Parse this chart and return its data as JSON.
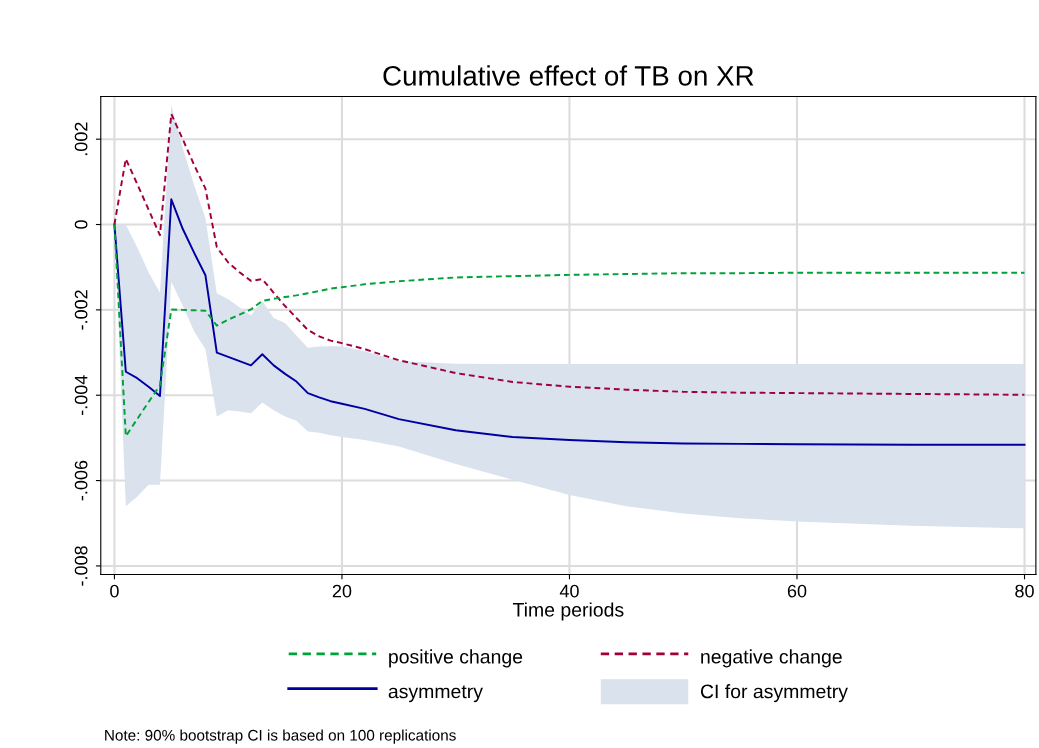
{
  "chart_data": {
    "type": "line",
    "title": "Cumulative effect of TB on XR",
    "xlabel": "Time periods",
    "x": [
      0,
      1,
      2,
      3,
      4,
      5,
      6,
      7,
      8,
      9,
      10,
      11,
      12,
      13,
      14,
      15,
      16,
      17,
      18,
      19,
      20,
      22,
      25,
      30,
      35,
      40,
      45,
      50,
      55,
      60,
      70,
      80
    ],
    "series": [
      {
        "name": "positive change",
        "color": "#00a23a",
        "line_style": "dashed",
        "values": [
          0,
          -0.00496,
          -0.00456,
          -0.00416,
          -0.00377,
          -0.00199,
          -0.002,
          -0.00201,
          -0.00202,
          -0.00237,
          -0.00223,
          -0.00211,
          -0.00199,
          -0.00179,
          -0.00174,
          -0.0017,
          -0.00166,
          -0.00161,
          -0.00156,
          -0.0015,
          -0.00147,
          -0.0014,
          -0.00133,
          -0.00124,
          -0.00121,
          -0.00118,
          -0.00116,
          -0.00114,
          -0.00114,
          -0.00113,
          -0.00113,
          -0.00113
        ]
      },
      {
        "name": "negative change",
        "color": "#a0003c",
        "line_style": "dashed",
        "values": [
          0,
          0.00154,
          0.00095,
          0.00035,
          -0.00025,
          0.00259,
          0.002,
          0.0014,
          0.00084,
          -0.00053,
          -0.00089,
          -0.00112,
          -0.00132,
          -0.00128,
          -0.0016,
          -0.00191,
          -0.00219,
          -0.00247,
          -0.00262,
          -0.00272,
          -0.00278,
          -0.00292,
          -0.00318,
          -0.00348,
          -0.00369,
          -0.0038,
          -0.00387,
          -0.00392,
          -0.00394,
          -0.00395,
          -0.00397,
          -0.00399
        ]
      },
      {
        "name": "asymmetry",
        "color": "#0000a0",
        "line_style": "solid",
        "values": [
          0,
          -0.00345,
          -0.0036,
          -0.0038,
          -0.00402,
          0.00059,
          -0.0001,
          -0.00066,
          -0.00119,
          -0.003,
          -0.0031,
          -0.0032,
          -0.0033,
          -0.00304,
          -0.0033,
          -0.0035,
          -0.00368,
          -0.00395,
          -0.00405,
          -0.00414,
          -0.0042,
          -0.00432,
          -0.00456,
          -0.00482,
          -0.00498,
          -0.00505,
          -0.0051,
          -0.00513,
          -0.00514,
          -0.00515,
          -0.00516,
          -0.00516
        ],
        "lower": [
          0,
          -0.0066,
          -0.00638,
          -0.0061,
          -0.0061,
          -0.00134,
          -0.0019,
          -0.0025,
          -0.00292,
          -0.0045,
          -0.00435,
          -0.00438,
          -0.00442,
          -0.00417,
          -0.00435,
          -0.0045,
          -0.0046,
          -0.00485,
          -0.00488,
          -0.00494,
          -0.00498,
          -0.00505,
          -0.0052,
          -0.00561,
          -0.00598,
          -0.00634,
          -0.0066,
          -0.00677,
          -0.00688,
          -0.00696,
          -0.00706,
          -0.00712
        ],
        "upper": [
          0,
          0,
          -0.00053,
          -0.00112,
          -0.0016,
          0.00279,
          0.0018,
          0.00093,
          0.00014,
          -0.00161,
          -0.00175,
          -0.00194,
          -0.00213,
          -0.00179,
          -0.00219,
          -0.00231,
          -0.0026,
          -0.00289,
          -0.00286,
          -0.00285,
          -0.00285,
          -0.00297,
          -0.0032,
          -0.00326,
          -0.00327,
          -0.00327,
          -0.00327,
          -0.00327,
          -0.00327,
          -0.00327,
          -0.00327,
          -0.00327
        ]
      }
    ],
    "xlim": [
      -1.2,
      81
    ],
    "xticks": [
      0,
      20,
      40,
      60,
      80
    ],
    "ylim": [
      -0.0082,
      0.003
    ],
    "yticks": [
      {
        "value": -0.008,
        "label": "-.008"
      },
      {
        "value": -0.006,
        "label": "-.006"
      },
      {
        "value": -0.004,
        "label": "-.004"
      },
      {
        "value": -0.002,
        "label": "-.002"
      },
      {
        "value": 0,
        "label": "0"
      },
      {
        "value": 0.002,
        "label": ".002"
      }
    ],
    "grid": true,
    "legend": "bottom",
    "marker": "none",
    "annotations": [
      "CI for asymmetry",
      "Note: 90% bootstrap CI is based on 100 replications"
    ]
  }
}
